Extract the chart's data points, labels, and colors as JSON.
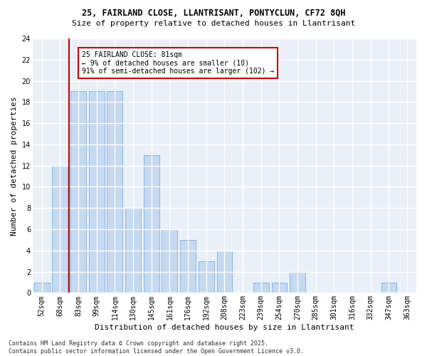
{
  "title1": "25, FAIRLAND CLOSE, LLANTRISANT, PONTYCLUN, CF72 8QH",
  "title2": "Size of property relative to detached houses in Llantrisant",
  "xlabel": "Distribution of detached houses by size in Llantrisant",
  "ylabel": "Number of detached properties",
  "bins": [
    "52sqm",
    "68sqm",
    "83sqm",
    "99sqm",
    "114sqm",
    "130sqm",
    "145sqm",
    "161sqm",
    "176sqm",
    "192sqm",
    "208sqm",
    "223sqm",
    "239sqm",
    "254sqm",
    "270sqm",
    "285sqm",
    "301sqm",
    "316sqm",
    "332sqm",
    "347sqm",
    "363sqm"
  ],
  "counts": [
    1,
    12,
    19,
    19,
    19,
    8,
    13,
    6,
    5,
    3,
    4,
    0,
    1,
    1,
    2,
    0,
    0,
    0,
    0,
    1,
    0
  ],
  "bar_color": "#c5d9f0",
  "bar_edge_color": "#7bafd4",
  "red_line_bin_index": 2,
  "annotation_text": "25 FAIRLAND CLOSE: 81sqm\n← 9% of detached houses are smaller (10)\n91% of semi-detached houses are larger (102) →",
  "annotation_box_color": "#ffffff",
  "annotation_box_edge": "#cc0000",
  "red_line_color": "#cc0000",
  "footer_text": "Contains HM Land Registry data © Crown copyright and database right 2025.\nContains public sector information licensed under the Open Government Licence v3.0.",
  "ylim": [
    0,
    24
  ],
  "yticks": [
    0,
    2,
    4,
    6,
    8,
    10,
    12,
    14,
    16,
    18,
    20,
    22,
    24
  ],
  "background_color": "#eaf0f8",
  "grid_color": "#ffffff",
  "title1_fontsize": 8.5,
  "title2_fontsize": 8.0,
  "xlabel_fontsize": 8.0,
  "ylabel_fontsize": 8.0,
  "tick_fontsize": 7.0,
  "annot_fontsize": 7.0,
  "footer_fontsize": 6.0
}
